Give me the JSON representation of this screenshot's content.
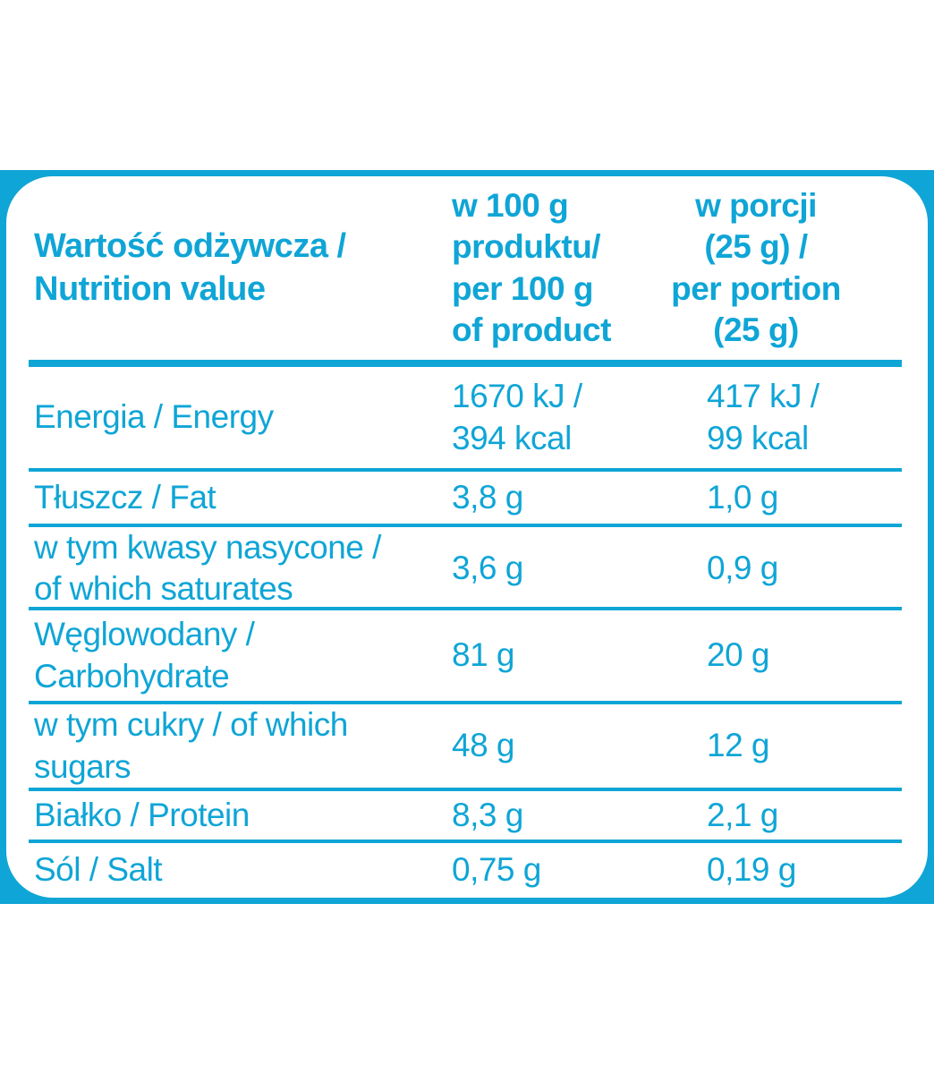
{
  "colors": {
    "accent": "#0fa5d6",
    "background": "#ffffff"
  },
  "table": {
    "header": {
      "label": "Wartość odżywcza /\nNutrition value",
      "per100": "w 100 g\nproduktu/\nper 100 g\nof product",
      "portion": "w porcji\n(25 g) /\nper portion\n(25 g)"
    },
    "rows": [
      {
        "label": "Energia / Energy",
        "per100": "1670 kJ /\n394 kcal",
        "portion": "417 kJ /\n99 kcal"
      },
      {
        "label": "Tłuszcz / Fat",
        "per100": "3,8 g",
        "portion": "1,0 g"
      },
      {
        "label": "w tym kwasy nasycone /\nof which saturates",
        "per100": "3,6 g",
        "portion": "0,9 g"
      },
      {
        "label": "Węglowodany /\nCarbohydrate",
        "per100": "81 g",
        "portion": "20 g"
      },
      {
        "label": "w tym cukry / of which\nsugars",
        "per100": "48 g",
        "portion": "12 g"
      },
      {
        "label": "Białko / Protein",
        "per100": "8,3 g",
        "portion": "2,1 g"
      },
      {
        "label": "Sól / Salt",
        "per100": "0,75 g",
        "portion": "0,19 g"
      }
    ]
  }
}
